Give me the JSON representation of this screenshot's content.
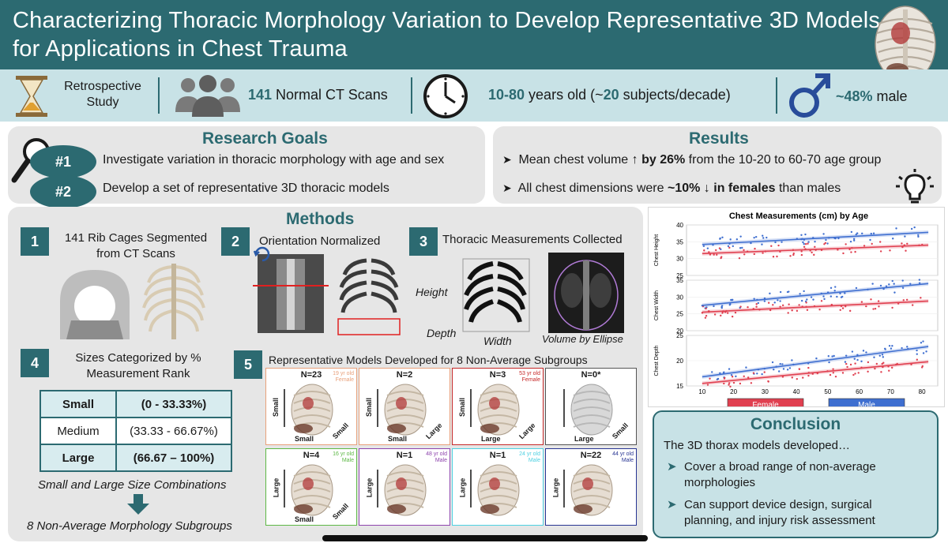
{
  "header": {
    "title_line1": "Characterizing Thoracic Morphology Variation to Develop Representative 3D Models",
    "title_line2": "for Applications in Chest Trauma"
  },
  "info": {
    "study_line1": "Retrospective",
    "study_line2": "Study",
    "scans_num": "141",
    "scans_text": " Normal CT Scans",
    "age_num1": "10-80",
    "age_text1": " years old (~",
    "age_num2": "20",
    "age_text2": " subjects/decade)",
    "male_num": "~48%",
    "male_text": " male"
  },
  "goals": {
    "title": "Research Goals",
    "items": [
      {
        "badge": "#1",
        "text": "Investigate variation in thoracic morphology with age and sex"
      },
      {
        "badge": "#2",
        "text": "Develop a set of representative 3D thoracic models"
      }
    ]
  },
  "results": {
    "title": "Results",
    "line1_a": "Mean chest volume ↑ ",
    "line1_b": "by 26%",
    "line1_c": " from the 10-20 to 60-70 age group",
    "line2_a": "All chest dimensions were ",
    "line2_b": "~10% ↓ in females",
    "line2_c": " than males"
  },
  "methods": {
    "title": "Methods",
    "steps": [
      {
        "num": "1",
        "label_line1": "141 Rib Cages Segmented",
        "label_line2": "from CT Scans"
      },
      {
        "num": "2",
        "label_line1": "Orientation Normalized"
      },
      {
        "num": "3",
        "label_line1": "Thoracic Measurements Collected"
      },
      {
        "num": "4",
        "label_line1": "Sizes Categorized by %",
        "label_line2": "Measurement Rank"
      },
      {
        "num": "5",
        "label_line1": "Representative Models Developed for 8 Non-Average Subgroups"
      }
    ],
    "measure_labels": {
      "height": "Height",
      "depth": "Depth",
      "width": "Width",
      "ellipse": "Volume by Ellipse"
    },
    "size_table": [
      {
        "name": "Small",
        "range": "(0 - 33.33%)"
      },
      {
        "name": "Medium",
        "range": "(33.33 - 66.67%)"
      },
      {
        "name": "Large",
        "range": "(66.67 – 100%)"
      }
    ],
    "note1": "Small and Large Size Combinations",
    "note2": "8 Non-Average Morphology Subgroups",
    "models": [
      {
        "n": "N=23",
        "sub1": "19 yr old",
        "sub2": "Female",
        "color": "#e8a07a",
        "axis1": "Small",
        "axis2": "Small",
        "axis3": "Small"
      },
      {
        "n": "N=2",
        "sub1": "",
        "sub2": "",
        "color": "#e8a07a",
        "axis1": "Small",
        "axis2": "Small",
        "axis3": "Large"
      },
      {
        "n": "N=3",
        "sub1": "53 yr old",
        "sub2": "Female",
        "color": "#c62828",
        "axis1": "Small",
        "axis2": "Large",
        "axis3": "Large"
      },
      {
        "n": "N=0*",
        "sub1": "",
        "sub2": "",
        "color": "#555555",
        "axis1": "",
        "axis2": "Large",
        "axis3": "Small"
      },
      {
        "n": "N=4",
        "sub1": "16 yr old",
        "sub2": "Male",
        "color": "#5db845",
        "axis1": "Large",
        "axis2": "Small",
        "axis3": "Small"
      },
      {
        "n": "N=1",
        "sub1": "48 yr old",
        "sub2": "Male",
        "color": "#8e44ad",
        "axis1": "Large",
        "axis2": "",
        "axis3": ""
      },
      {
        "n": "N=1",
        "sub1": "24 yr old",
        "sub2": "Male",
        "color": "#4dd0e1",
        "axis1": "Large",
        "axis2": "",
        "axis3": ""
      },
      {
        "n": "N=22",
        "sub1": "44 yr old",
        "sub2": "Male",
        "color": "#283593",
        "axis1": "Large",
        "axis2": "",
        "axis3": ""
      }
    ]
  },
  "chart_data": {
    "type": "scatter",
    "title": "Chest Measurements (cm) by Age",
    "xlim": [
      5,
      85
    ],
    "xticks": [
      "10",
      "20",
      "30",
      "40",
      "50",
      "60",
      "70",
      "80"
    ],
    "panels": [
      {
        "ylabel": "Chest Height",
        "ylim": [
          25,
          40
        ],
        "yticks": [
          "25",
          "30",
          "35",
          "40"
        ],
        "male_fit": [
          [
            10,
            34.2
          ],
          [
            82,
            37.8
          ]
        ],
        "female_fit": [
          [
            10,
            31.5
          ],
          [
            82,
            34.0
          ]
        ]
      },
      {
        "ylabel": "Chest Width",
        "ylim": [
          20,
          35
        ],
        "yticks": [
          "20",
          "25",
          "30",
          "35"
        ],
        "male_fit": [
          [
            10,
            27.5
          ],
          [
            82,
            34.0
          ]
        ],
        "female_fit": [
          [
            10,
            25.5
          ],
          [
            82,
            28.8
          ]
        ]
      },
      {
        "ylabel": "Chest Depth",
        "ylim": [
          15,
          25
        ],
        "yticks": [
          "15",
          "20",
          "25"
        ],
        "male_fit": [
          [
            10,
            16.8
          ],
          [
            82,
            22.8
          ]
        ],
        "female_fit": [
          [
            10,
            15.5
          ],
          [
            82,
            19.8
          ]
        ]
      }
    ],
    "series": [
      {
        "name": "Female",
        "color": "#e04050"
      },
      {
        "name": "Male",
        "color": "#3f6fd0"
      }
    ],
    "legend": "bottom"
  },
  "conclusion": {
    "title": "Conclusion",
    "intro": "The 3D thorax models developed…",
    "bullets": [
      {
        "l1": "Cover a broad range of non-average",
        "l2": "morphologies"
      },
      {
        "l1": "Can support device design, surgical",
        "l2": "planning, and injury risk assessment"
      }
    ]
  },
  "colors": {
    "accent": "#2c6a71",
    "light": "#c8e2e6",
    "panel": "#e6e6e6"
  }
}
